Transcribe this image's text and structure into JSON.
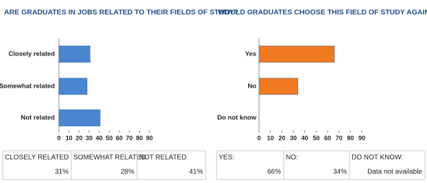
{
  "chart_data": [
    {
      "type": "bar",
      "title": "ARE GRADUATES IN JOBS RELATED TO THEIR FIELDS OF STUDY?",
      "categories": [
        "Closely related",
        "Somewhat related",
        "Not related"
      ],
      "values": [
        31,
        28,
        41
      ],
      "color": "#4a86d0",
      "xlim": [
        0,
        90
      ],
      "xticks": [
        0,
        10,
        20,
        30,
        40,
        50,
        60,
        70,
        80,
        90
      ]
    },
    {
      "type": "bar",
      "title": "WOULD GRADUATES CHOOSE THIS FIELD OF STUDY AGAIN?",
      "categories": [
        "Yes",
        "No",
        "Do not know"
      ],
      "values": [
        66,
        34,
        null
      ],
      "color": "#f07a20",
      "xlim": [
        0,
        90
      ],
      "xticks": [
        0,
        10,
        20,
        30,
        40,
        50,
        60,
        70,
        80,
        90
      ]
    }
  ],
  "tables": [
    {
      "headers": [
        "CLOSELY RELATED",
        "SOMEWHAT RELATED",
        "NOT RELATED"
      ],
      "cells": [
        "31%",
        "28%",
        "41%"
      ]
    },
    {
      "headers": [
        "YES:",
        "NO:",
        "DO NOT KNOW:"
      ],
      "cells": [
        "66%",
        "34%",
        "Data not available"
      ]
    }
  ]
}
